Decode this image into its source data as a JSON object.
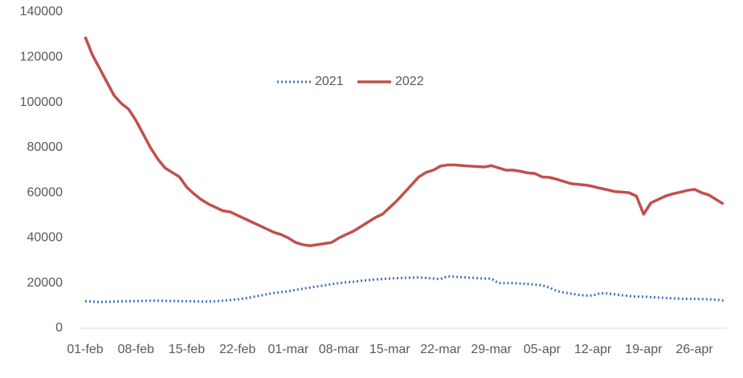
{
  "chart_data": {
    "type": "line",
    "categories": [
      "01-feb",
      null,
      null,
      null,
      null,
      null,
      null,
      "08-feb",
      null,
      null,
      null,
      null,
      null,
      null,
      "15-feb",
      null,
      null,
      null,
      null,
      null,
      null,
      "22-feb",
      null,
      null,
      null,
      null,
      null,
      null,
      "01-mar",
      null,
      null,
      null,
      null,
      null,
      null,
      "08-mar",
      null,
      null,
      null,
      null,
      null,
      null,
      "15-mar",
      null,
      null,
      null,
      null,
      null,
      null,
      "22-mar",
      null,
      null,
      null,
      null,
      null,
      null,
      "29-mar",
      null,
      null,
      null,
      null,
      null,
      null,
      "05-apr",
      null,
      null,
      null,
      null,
      null,
      null,
      "12-apr",
      null,
      null,
      null,
      null,
      null,
      null,
      "19-apr",
      null,
      null,
      null,
      null,
      null,
      null,
      "26-apr",
      null,
      null,
      null,
      null
    ],
    "series": [
      {
        "name": "2021",
        "color": "#4472c4",
        "dash": "dotted",
        "values": [
          12000,
          11800,
          11600,
          11700,
          11800,
          11900,
          12000,
          12000,
          12100,
          12200,
          12200,
          12100,
          12100,
          12000,
          12000,
          11900,
          11800,
          11800,
          12000,
          12200,
          12500,
          12800,
          13200,
          13800,
          14400,
          15000,
          15600,
          16000,
          16400,
          17000,
          17500,
          18000,
          18500,
          19000,
          19500,
          20000,
          20300,
          20600,
          21000,
          21300,
          21600,
          21800,
          22000,
          22200,
          22300,
          22400,
          22500,
          22300,
          22000,
          21800,
          23000,
          22800,
          22600,
          22400,
          22200,
          22000,
          22000,
          20000,
          20000,
          20000,
          19800,
          19600,
          19300,
          19000,
          18000,
          16500,
          15800,
          15300,
          14800,
          14500,
          14500,
          15500,
          15400,
          15000,
          14600,
          14300,
          14000,
          14000,
          13800,
          13600,
          13400,
          13200,
          13100,
          13000,
          13000,
          12900,
          12800,
          12600,
          12300
        ]
      },
      {
        "name": "2022",
        "color": "#c0504d",
        "dash": "solid",
        "values": [
          129000,
          121000,
          115000,
          109000,
          103000,
          99500,
          97000,
          92000,
          86000,
          80000,
          75000,
          71000,
          69000,
          67000,
          62500,
          59500,
          57000,
          55000,
          53500,
          52000,
          51500,
          50000,
          48500,
          47000,
          45500,
          44000,
          42500,
          41500,
          40000,
          38000,
          37000,
          36500,
          37000,
          37500,
          38000,
          40000,
          41500,
          43000,
          45000,
          47000,
          49000,
          50500,
          53500,
          56500,
          60000,
          63500,
          67000,
          69000,
          70000,
          71800,
          72300,
          72300,
          72000,
          71800,
          71600,
          71400,
          72000,
          71000,
          70000,
          70000,
          69500,
          68800,
          68500,
          67000,
          66800,
          66000,
          65000,
          64000,
          63700,
          63400,
          62800,
          62000,
          61300,
          60500,
          60300,
          60000,
          58500,
          50500,
          55500,
          57000,
          58500,
          59500,
          60200,
          61000,
          61500,
          60000,
          59000,
          57000,
          55000
        ]
      }
    ],
    "ylim": [
      0,
      140000
    ],
    "yticks": [
      0,
      20000,
      40000,
      60000,
      80000,
      100000,
      120000,
      140000
    ],
    "legend": "top"
  }
}
